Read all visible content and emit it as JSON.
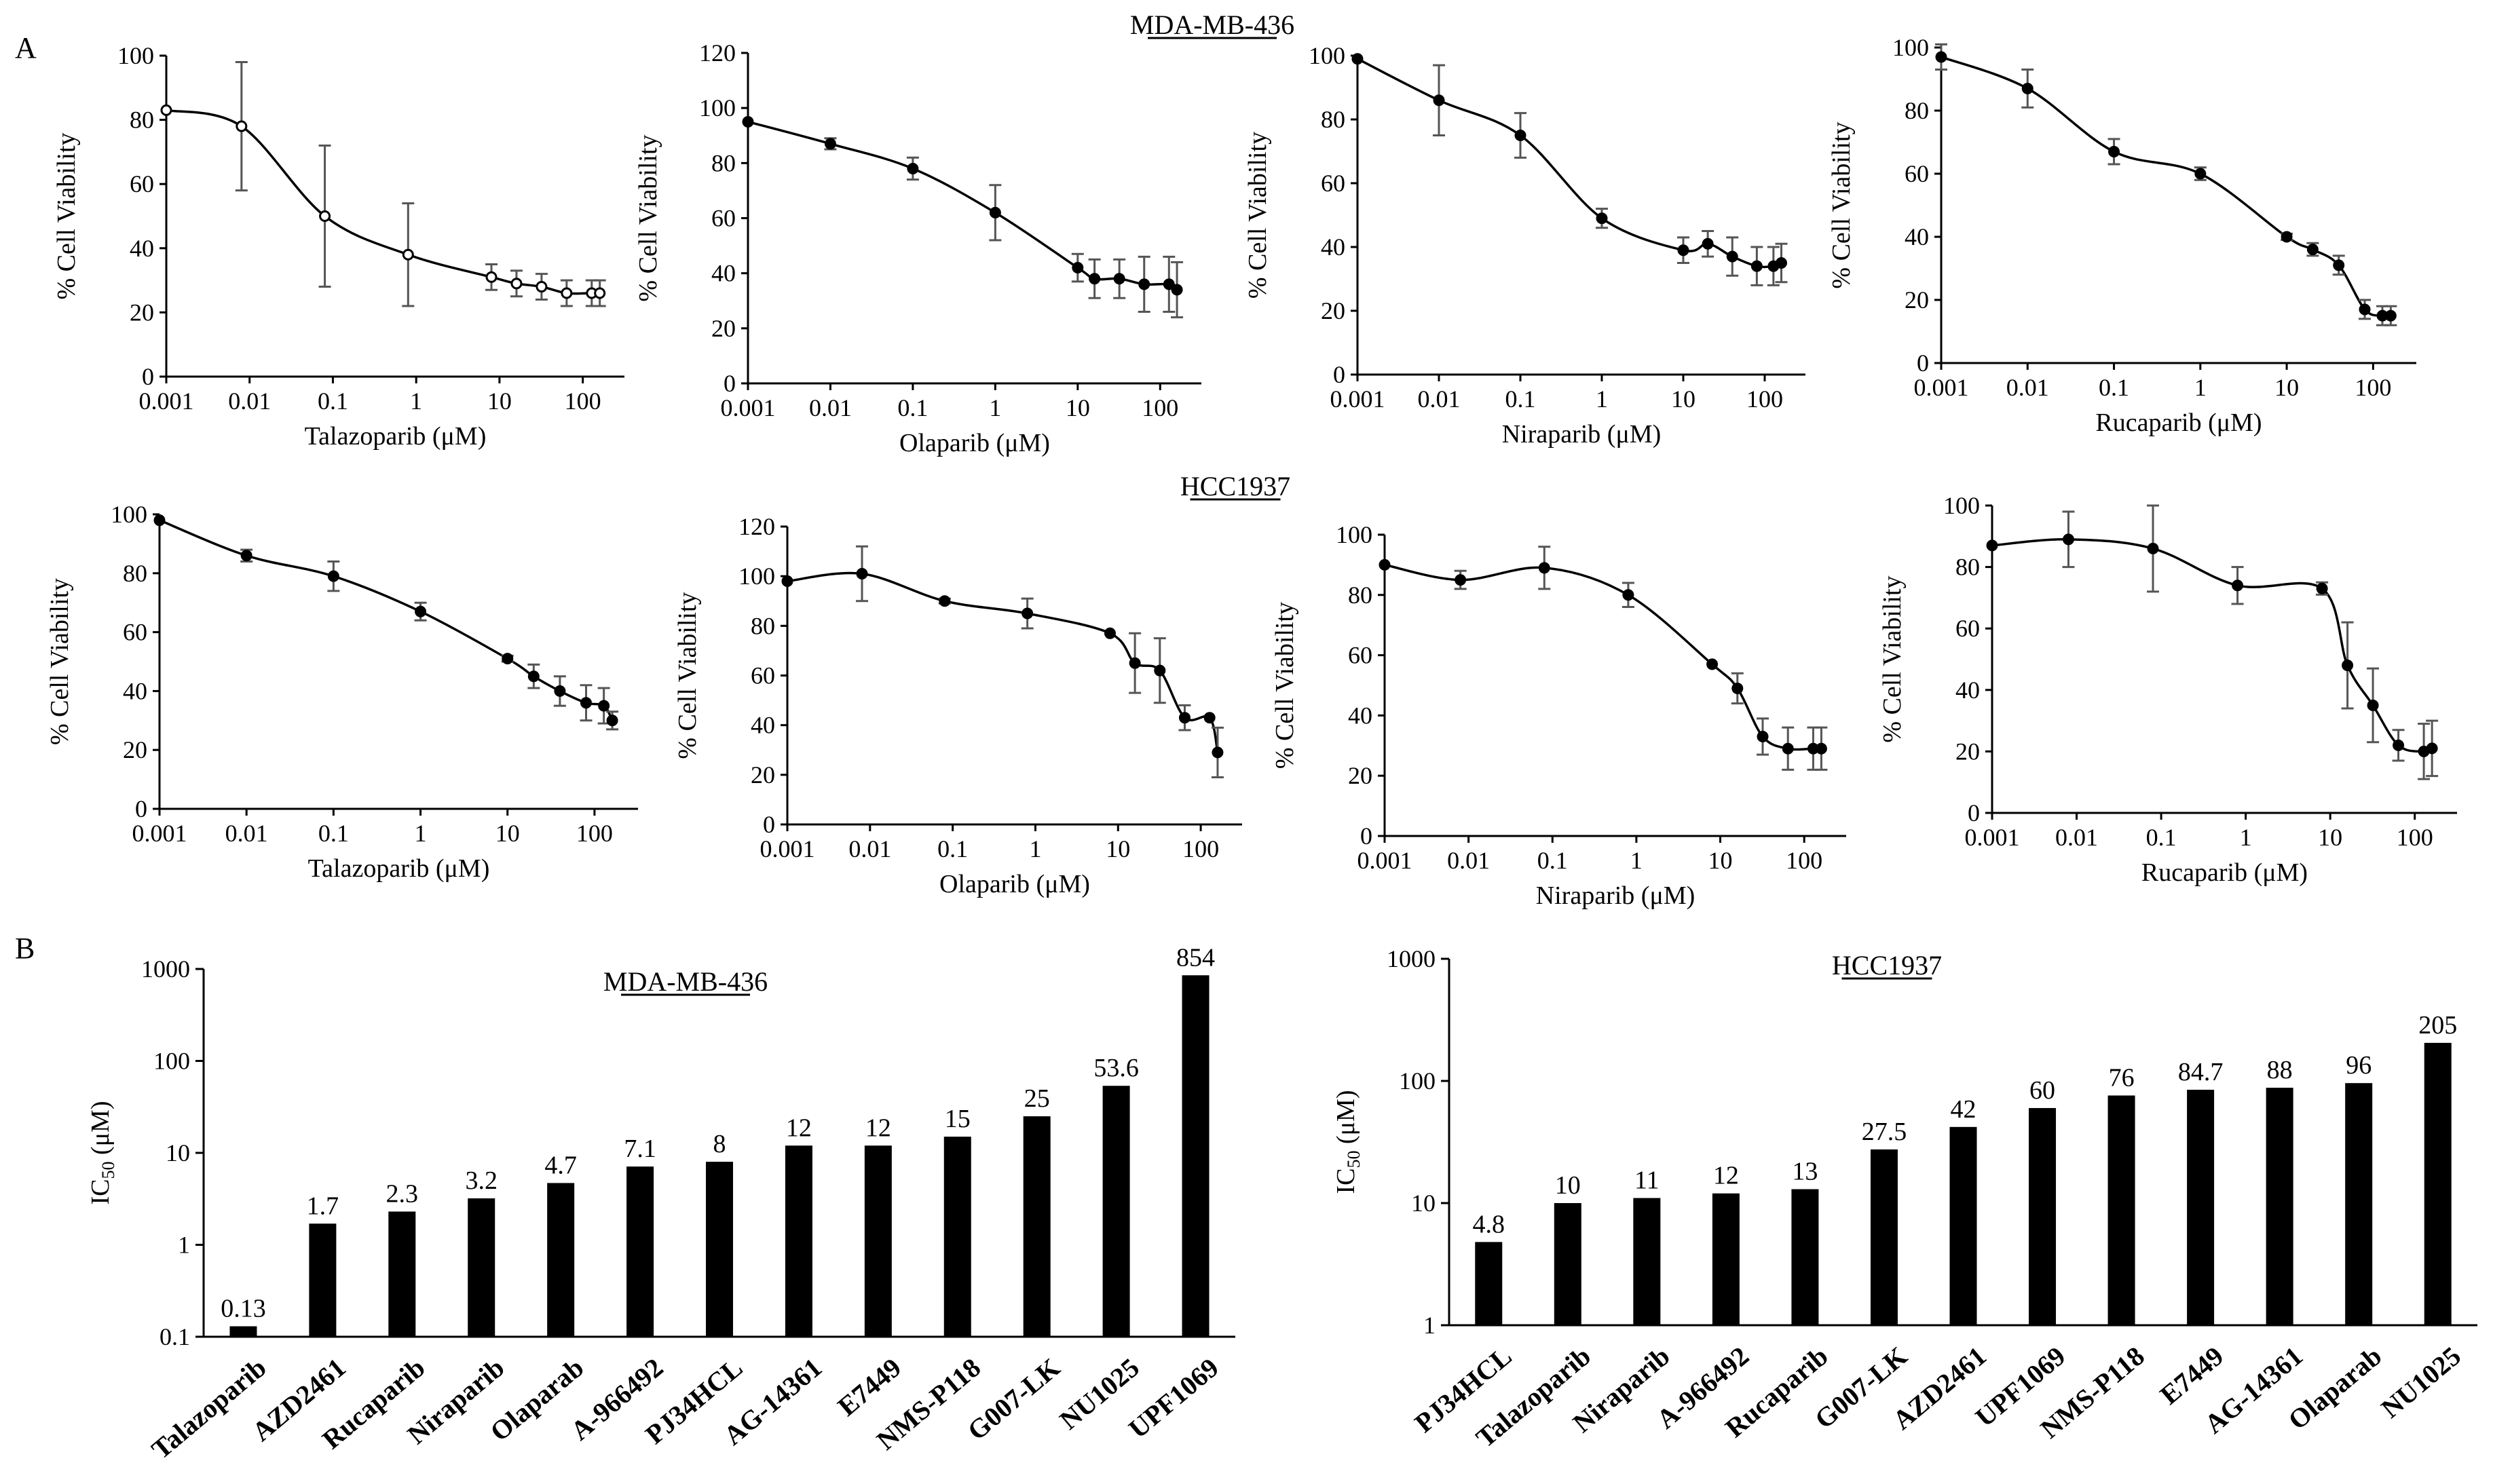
{
  "panels": {
    "A": "A",
    "B": "B"
  },
  "chart_data": [
    {
      "type": "line",
      "title": "",
      "cell_line": "MDA-MB-436",
      "xlabel": "Talazoparib (μM)",
      "ylabel": "% Cell Viability",
      "x_ticks": [
        "0.001",
        "0.01",
        "0.1",
        "1",
        "10",
        "100"
      ],
      "y_ticks": [
        "0",
        "20",
        "40",
        "60",
        "80",
        "100"
      ],
      "ylim": [
        0,
        100
      ],
      "x": [
        0.001,
        0.008,
        0.08,
        0.8,
        8,
        16,
        32,
        64,
        128,
        160
      ],
      "y": [
        83,
        78,
        50,
        38,
        31,
        29,
        28,
        26,
        26,
        26
      ],
      "err": [
        0,
        20,
        22,
        16,
        4,
        4,
        4,
        4,
        4,
        4
      ],
      "marker": "open"
    },
    {
      "type": "line",
      "title": "MDA-MB-436",
      "cell_line": "MDA-MB-436",
      "xlabel": "Olaparib (μM)",
      "ylabel": "% Cell Viability",
      "x_ticks": [
        "0.001",
        "0.01",
        "0.1",
        "1",
        "10",
        "100"
      ],
      "y_ticks": [
        "0",
        "20",
        "40",
        "60",
        "80",
        "100",
        "120"
      ],
      "ylim": [
        0,
        120
      ],
      "x": [
        0.001,
        0.01,
        0.1,
        1,
        10,
        16,
        32,
        64,
        128,
        160
      ],
      "y": [
        95,
        87,
        78,
        62,
        42,
        38,
        38,
        36,
        36,
        34
      ],
      "err": [
        0,
        2,
        4,
        10,
        5,
        7,
        7,
        10,
        10,
        10
      ]
    },
    {
      "type": "line",
      "title": "",
      "cell_line": "MDA-MB-436",
      "xlabel": "Niraparib (μM)",
      "ylabel": "% Cell Viability",
      "x_ticks": [
        "0.001",
        "0.01",
        "0.1",
        "1",
        "10",
        "100"
      ],
      "y_ticks": [
        "0",
        "20",
        "40",
        "60",
        "80",
        "100"
      ],
      "ylim": [
        0,
        100
      ],
      "x": [
        0.001,
        0.01,
        0.1,
        1,
        10,
        20,
        40,
        80,
        128,
        160
      ],
      "y": [
        99,
        86,
        75,
        49,
        39,
        41,
        37,
        34,
        34,
        35
      ],
      "err": [
        0,
        11,
        7,
        3,
        4,
        4,
        6,
        6,
        6,
        6
      ]
    },
    {
      "type": "line",
      "title": "",
      "cell_line": "MDA-MB-436",
      "xlabel": "Rucaparib (μM)",
      "ylabel": "% Cell Viability",
      "x_ticks": [
        "0.001",
        "0.01",
        "0.1",
        "1",
        "10",
        "100"
      ],
      "y_ticks": [
        "0",
        "20",
        "40",
        "60",
        "80",
        "100"
      ],
      "ylim": [
        0,
        100
      ],
      "x": [
        0.001,
        0.01,
        0.1,
        1,
        10,
        20,
        40,
        80,
        128,
        160
      ],
      "y": [
        97,
        87,
        67,
        60,
        40,
        36,
        31,
        17,
        15,
        15
      ],
      "err": [
        4,
        6,
        4,
        2,
        1,
        2,
        3,
        3,
        3,
        3
      ]
    },
    {
      "type": "line",
      "title": "",
      "cell_line": "HCC1937",
      "xlabel": "Talazoparib (μM)",
      "ylabel": "% Cell Viability",
      "x_ticks": [
        "0.001",
        "0.01",
        "0.1",
        "1",
        "10",
        "100"
      ],
      "y_ticks": [
        "0",
        "20",
        "40",
        "60",
        "80",
        "100"
      ],
      "ylim": [
        0,
        100
      ],
      "x": [
        0.001,
        0.01,
        0.1,
        1,
        10,
        20,
        40,
        80,
        128,
        160
      ],
      "y": [
        98,
        86,
        79,
        67,
        51,
        45,
        40,
        36,
        35,
        30
      ],
      "err": [
        0,
        2,
        5,
        3,
        1,
        4,
        5,
        6,
        6,
        3
      ]
    },
    {
      "type": "line",
      "title": "HCC1937",
      "cell_line": "HCC1937",
      "xlabel": "Olaparib (μM)",
      "ylabel": "% Cell Viability",
      "x_ticks": [
        "0.001",
        "0.01",
        "0.1",
        "1",
        "10",
        "100"
      ],
      "y_ticks": [
        "0",
        "20",
        "40",
        "60",
        "80",
        "100",
        "120"
      ],
      "ylim": [
        0,
        120
      ],
      "x": [
        0.001,
        0.008,
        0.08,
        0.8,
        8,
        16,
        32,
        64,
        128,
        160
      ],
      "y": [
        98,
        101,
        90,
        85,
        77,
        65,
        62,
        43,
        43,
        29
      ],
      "err": [
        0,
        11,
        1,
        6,
        0,
        12,
        13,
        5,
        0,
        10
      ]
    },
    {
      "type": "line",
      "title": "",
      "cell_line": "HCC1937",
      "xlabel": "Niraparib (μM)",
      "ylabel": "% Cell Viability",
      "x_ticks": [
        "0.001",
        "0.01",
        "0.1",
        "1",
        "10",
        "100"
      ],
      "y_ticks": [
        "0",
        "20",
        "40",
        "60",
        "80",
        "100"
      ],
      "ylim": [
        0,
        100
      ],
      "x": [
        0.001,
        0.008,
        0.08,
        0.8,
        8,
        16,
        32,
        64,
        128,
        160
      ],
      "y": [
        90,
        85,
        89,
        80,
        57,
        49,
        33,
        29,
        29,
        29
      ],
      "err": [
        0,
        3,
        7,
        4,
        0,
        5,
        6,
        7,
        7,
        7
      ]
    },
    {
      "type": "line",
      "title": "",
      "cell_line": "HCC1937",
      "xlabel": "Rucaparib (μM)",
      "ylabel": "% Cell Viability",
      "x_ticks": [
        "0.001",
        "0.01",
        "0.1",
        "1",
        "10",
        "100"
      ],
      "y_ticks": [
        "0",
        "20",
        "40",
        "60",
        "80",
        "100"
      ],
      "ylim": [
        0,
        100
      ],
      "x": [
        0.001,
        0.008,
        0.08,
        0.8,
        8,
        16,
        32,
        64,
        128,
        160
      ],
      "y": [
        87,
        89,
        86,
        74,
        73,
        48,
        35,
        22,
        20,
        21
      ],
      "err": [
        0,
        9,
        14,
        6,
        2,
        14,
        12,
        5,
        9,
        9
      ]
    },
    {
      "type": "bar",
      "title": "MDA-MB-436",
      "ylabel": "IC50 (μM)",
      "yscale": "log",
      "ylim": [
        0.1,
        1000
      ],
      "y_ticks": [
        "0.1",
        "1",
        "10",
        "100",
        "1000"
      ],
      "categories": [
        "Talazoparib",
        "AZD2461",
        "Rucaparib",
        "Niraparib",
        "Olaparab",
        "A-966492",
        "PJ34HCL",
        "AG-14361",
        "E7449",
        "NMS-P118",
        "G007-LK",
        "NU1025",
        "UPF1069"
      ],
      "values": [
        0.13,
        1.7,
        2.3,
        3.2,
        4.7,
        7.1,
        8,
        12,
        12,
        15,
        25,
        53.6,
        854
      ],
      "labels": [
        "0.13",
        "1.7",
        "2.3",
        "3.2",
        "4.7",
        "7.1",
        "8",
        "12",
        "12",
        "15",
        "25",
        "53.6",
        "854"
      ]
    },
    {
      "type": "bar",
      "title": "HCC1937",
      "ylabel": "IC50 (μM)",
      "yscale": "log",
      "ylim": [
        1,
        1000
      ],
      "y_ticks": [
        "1",
        "10",
        "100",
        "1000"
      ],
      "categories": [
        "PJ34HCL",
        "Talazoparib",
        "Niraparib",
        "A-966492",
        "Rucaparib",
        "G007-LK",
        "AZD2461",
        "UPF1069",
        "NMS-P118",
        "E7449",
        "AG-14361",
        "Olaparab",
        "NU1025"
      ],
      "values": [
        4.8,
        10,
        11,
        12,
        13,
        27.5,
        42,
        60,
        76,
        84.7,
        88,
        96,
        205
      ],
      "labels": [
        "4.8",
        "10",
        "11",
        "12",
        "13",
        "27.5",
        "42",
        "60",
        "76",
        "84.7",
        "88",
        "96",
        "205"
      ]
    }
  ]
}
